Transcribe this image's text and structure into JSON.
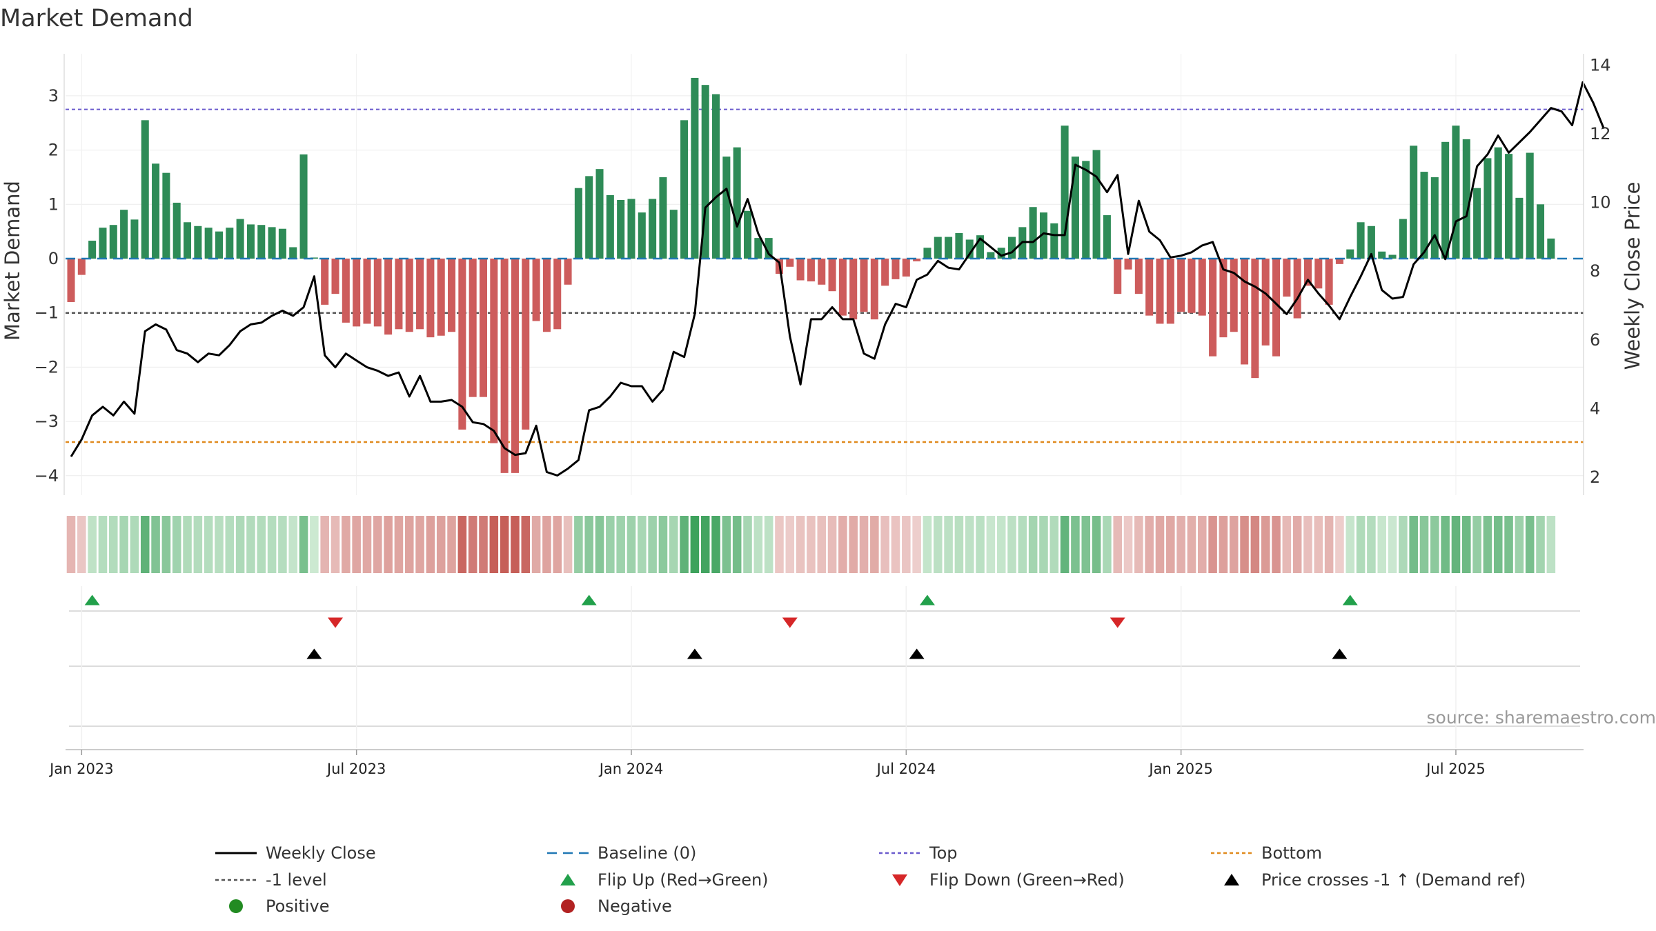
{
  "title": "Market Demand",
  "source": "source: sharemaestro.com",
  "colors": {
    "positive": "#2e8b57",
    "negative": "#cd5c5c",
    "price": "#000000",
    "baseline": "#1f77b4",
    "top": "#6a5acd",
    "bottom": "#e08a1e",
    "minus1": "#555555",
    "flip_up": "#22a04b",
    "flip_down": "#d62728",
    "cross": "#000000"
  },
  "legend": [
    {
      "label": "Weekly Close",
      "kind": "solid"
    },
    {
      "label": "Baseline (0)",
      "kind": "dashed"
    },
    {
      "label": "Top",
      "kind": "dotted-top"
    },
    {
      "label": "Bottom",
      "kind": "dotted-bottom"
    },
    {
      "label": "-1 level",
      "kind": "dotted-minus"
    },
    {
      "label": "Flip Up (Red→Green)",
      "kind": "tri-up"
    },
    {
      "label": "Flip Down (Green→Red)",
      "kind": "tri-down"
    },
    {
      "label": "Price crosses -1 ↑ (Demand ref)",
      "kind": "tri-cross"
    },
    {
      "label": "Positive",
      "kind": "dot-pos"
    },
    {
      "label": "Negative",
      "kind": "dot-neg"
    }
  ],
  "chart_data": {
    "type": "bar",
    "title": "Market Demand",
    "ylabel": "Market Demand",
    "y2label": "Weekly Close Price",
    "ylim": [
      -4.4,
      3.75
    ],
    "y2lim": [
      1.65,
      14.4
    ],
    "yticks": [
      "3",
      "2",
      "1",
      "0",
      "−1",
      "−2",
      "−3",
      "−4"
    ],
    "ytick_values": [
      3,
      2,
      1,
      0,
      -1,
      -2,
      -3,
      -4
    ],
    "y2ticks": [
      "14",
      "12",
      "10",
      "8",
      "6",
      "4",
      "2"
    ],
    "y2tick_values": [
      14,
      12,
      10,
      8,
      6,
      4,
      2
    ],
    "xticks": [
      "Jan 2023",
      "Jul 2023",
      "Jan 2024",
      "Jul 2024",
      "Jan 2025",
      "Jul 2025"
    ],
    "xtick_weeks": [
      1,
      27,
      53,
      79,
      105,
      131
    ],
    "weeks": 144,
    "reference_lines": {
      "baseline": 0,
      "top": 2.75,
      "bottom": -3.38,
      "minus1": -1
    },
    "series": [
      {
        "name": "Market Demand",
        "values": [
          -0.8,
          -0.3,
          0.33,
          0.57,
          0.62,
          0.9,
          0.72,
          2.55,
          1.75,
          1.58,
          1.03,
          0.67,
          0.6,
          0.57,
          0.5,
          0.57,
          0.73,
          0.63,
          0.62,
          0.58,
          0.55,
          0.21,
          1.92,
          0.02,
          -0.85,
          -0.65,
          -1.18,
          -1.25,
          -1.2,
          -1.25,
          -1.4,
          -1.3,
          -1.35,
          -1.3,
          -1.45,
          -1.42,
          -1.35,
          -3.15,
          -2.55,
          -2.55,
          -3.4,
          -3.95,
          -3.95,
          -3.15,
          -1.15,
          -1.35,
          -1.3,
          -0.48,
          1.3,
          1.52,
          1.65,
          1.17,
          1.08,
          1.1,
          0.85,
          1.1,
          1.5,
          0.9,
          2.55,
          3.33,
          3.2,
          3.03,
          1.88,
          2.05,
          0.88,
          0.38,
          0.38,
          -0.28,
          -0.15,
          -0.4,
          -0.42,
          -0.48,
          -0.6,
          -1.05,
          -1.12,
          -0.98,
          -1.12,
          -0.5,
          -0.38,
          -0.33,
          -0.05,
          0.2,
          0.4,
          0.4,
          0.47,
          0.35,
          0.43,
          0.12,
          0.2,
          0.4,
          0.58,
          0.95,
          0.85,
          0.65,
          2.45,
          1.88,
          1.8,
          2.0,
          0.8,
          -0.65,
          -0.2,
          -0.65,
          -1.05,
          -1.2,
          -1.2,
          -0.98,
          -1.0,
          -1.05,
          -1.8,
          -1.45,
          -1.35,
          -1.95,
          -2.2,
          -1.6,
          -1.8,
          -0.7,
          -1.1,
          -0.5,
          -0.55,
          -0.85,
          -0.1,
          0.17,
          0.67,
          0.6,
          0.13,
          0.07,
          0.73,
          2.08,
          1.6,
          1.5,
          2.15,
          2.45,
          2.2,
          1.3,
          1.85,
          2.05,
          1.93,
          1.12,
          1.95,
          1.0,
          0.37
        ]
      },
      {
        "name": "Weekly Close",
        "axis": "right",
        "values": [
          2.6,
          3.1,
          3.8,
          4.05,
          3.8,
          4.2,
          3.85,
          6.25,
          6.45,
          6.3,
          5.7,
          5.6,
          5.35,
          5.6,
          5.55,
          5.85,
          6.25,
          6.45,
          6.5,
          6.7,
          6.85,
          6.7,
          6.95,
          7.85,
          5.55,
          5.2,
          5.6,
          5.4,
          5.2,
          5.1,
          4.95,
          5.05,
          4.35,
          4.95,
          4.2,
          4.2,
          4.25,
          4.05,
          3.6,
          3.55,
          3.35,
          2.85,
          2.65,
          2.7,
          3.5,
          2.15,
          2.05,
          2.25,
          2.5,
          3.95,
          4.05,
          4.35,
          4.75,
          4.65,
          4.65,
          4.2,
          4.55,
          5.65,
          5.5,
          6.75,
          9.85,
          10.15,
          10.4,
          9.3,
          10.1,
          9.1,
          8.5,
          8.25,
          6.1,
          4.7,
          6.6,
          6.6,
          6.95,
          6.6,
          6.6,
          5.6,
          5.45,
          6.45,
          7.05,
          6.95,
          7.75,
          7.9,
          8.3,
          8.1,
          8.05,
          8.5,
          8.95,
          8.7,
          8.45,
          8.55,
          8.85,
          8.85,
          9.1,
          9.05,
          9.05,
          11.1,
          10.95,
          10.75,
          10.3,
          10.8,
          8.5,
          10.05,
          9.15,
          8.9,
          8.4,
          8.45,
          8.55,
          8.75,
          8.85,
          8.05,
          7.95,
          7.7,
          7.55,
          7.35,
          7.05,
          6.75,
          7.2,
          7.75,
          7.35,
          7.0,
          6.6,
          7.25,
          7.85,
          8.5,
          7.45,
          7.2,
          7.25,
          8.2,
          8.55,
          9.05,
          8.35,
          9.45,
          9.6,
          11.05,
          11.4,
          11.95,
          11.45,
          11.75,
          12.05,
          12.4,
          12.75,
          12.65,
          12.25,
          13.5,
          12.9,
          12.15
        ]
      }
    ],
    "flip_up_weeks": [
      2,
      49,
      81,
      121
    ],
    "flip_down_weeks": [
      25,
      68,
      99
    ],
    "price_cross_weeks": [
      23,
      59,
      80,
      120
    ]
  }
}
